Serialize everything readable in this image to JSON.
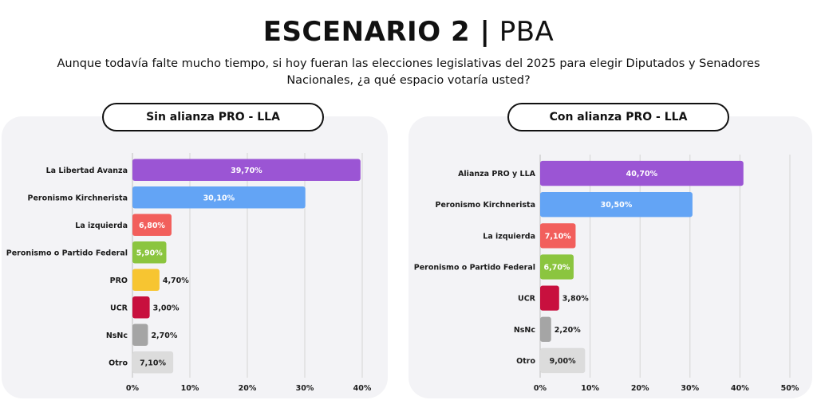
{
  "header": {
    "title_bold": "ESCENARIO 2 |",
    "title_light": "PBA",
    "question": "Aunque todavía falte mucho tiempo, si hoy fueran las elecciones legislativas del 2025 para elegir Diputados y Senadores Nacionales, ¿a qué espacio votaría usted?"
  },
  "chart_data": [
    {
      "type": "bar",
      "orientation": "horizontal",
      "title": "Sin alianza PRO - LLA",
      "categories": [
        "La Libertad Avanza",
        "Peronismo Kirchnerista",
        "La izquierda",
        "Peronismo o Partido Federal",
        "PRO",
        "UCR",
        "NsNc",
        "Otro"
      ],
      "values": [
        39.7,
        30.1,
        6.8,
        5.9,
        4.7,
        3.0,
        2.7,
        7.1
      ],
      "value_labels": [
        "39,70%",
        "30,10%",
        "6,80%",
        "5,90%",
        "4,70%",
        "3,00%",
        "2,70%",
        "7,10%"
      ],
      "colors": [
        "#9b55d4",
        "#63a4f5",
        "#f25f5c",
        "#8bc53f",
        "#f7c531",
        "#c8103e",
        "#a5a5a5",
        "#dcdcdc"
      ],
      "label_inside": [
        true,
        true,
        true,
        true,
        false,
        false,
        false,
        true
      ],
      "xlim": [
        0,
        40
      ],
      "ticks": [
        0,
        10,
        20,
        30,
        40
      ],
      "tick_labels": [
        "0%",
        "10%",
        "20%",
        "30%",
        "40%"
      ],
      "grid": true
    },
    {
      "type": "bar",
      "orientation": "horizontal",
      "title": "Con alianza PRO - LLA",
      "categories": [
        "Alianza PRO y LLA",
        "Peronismo Kirchnerista",
        "La izquierda",
        "Peronismo o Partido Federal",
        "UCR",
        "NsNc",
        "Otro"
      ],
      "values": [
        40.7,
        30.5,
        7.1,
        6.7,
        3.8,
        2.2,
        9.0
      ],
      "value_labels": [
        "40,70%",
        "30,50%",
        "7,10%",
        "6,70%",
        "3,80%",
        "2,20%",
        "9,00%"
      ],
      "colors": [
        "#9b55d4",
        "#63a4f5",
        "#f25f5c",
        "#8bc53f",
        "#c8103e",
        "#a5a5a5",
        "#dcdcdc"
      ],
      "label_inside": [
        true,
        true,
        true,
        true,
        false,
        false,
        true
      ],
      "xlim": [
        0,
        50
      ],
      "ticks": [
        0,
        10,
        20,
        30,
        40,
        50
      ],
      "tick_labels": [
        "0%",
        "10%",
        "20%",
        "30%",
        "40%",
        "50%"
      ],
      "grid": true
    }
  ]
}
